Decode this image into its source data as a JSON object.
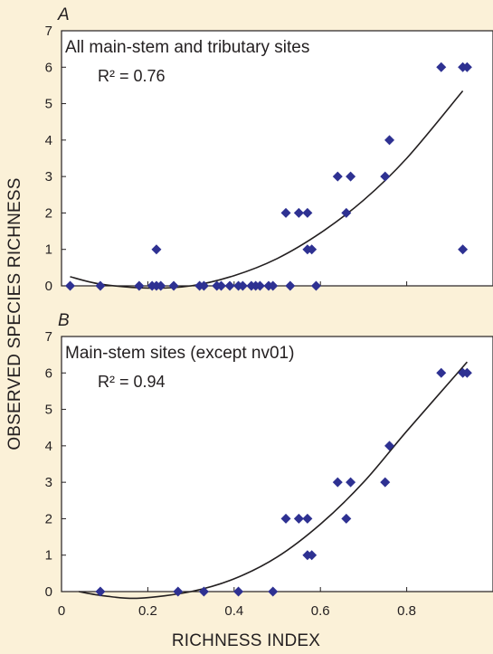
{
  "chart_data": {
    "type": "scatter",
    "xlabel": "RICHNESS INDEX",
    "ylabel": "OBSERVED SPECIES RICHNESS",
    "panels": [
      {
        "letter": "A",
        "title": "All main-stem and tributary sites",
        "r2": "R² = 0.76",
        "xlim": [
          0,
          1.0
        ],
        "ylim": [
          0,
          7
        ],
        "xticks": [
          "0",
          "0.2",
          "0.4",
          "0.6",
          "0.8"
        ],
        "xtick_values": [
          0,
          0.2,
          0.4,
          0.6,
          0.8
        ],
        "yticks": [
          "0",
          "1",
          "2",
          "3",
          "4",
          "5",
          "6",
          "7"
        ],
        "yticks_values": [
          0,
          1,
          2,
          3,
          4,
          5,
          6,
          7
        ],
        "marker_color": "#2e3192",
        "points": [
          [
            0.02,
            0
          ],
          [
            0.09,
            0
          ],
          [
            0.18,
            0
          ],
          [
            0.21,
            0
          ],
          [
            0.22,
            0
          ],
          [
            0.23,
            0
          ],
          [
            0.26,
            0
          ],
          [
            0.32,
            0
          ],
          [
            0.33,
            0
          ],
          [
            0.36,
            0
          ],
          [
            0.37,
            0
          ],
          [
            0.39,
            0
          ],
          [
            0.41,
            0
          ],
          [
            0.42,
            0
          ],
          [
            0.44,
            0
          ],
          [
            0.45,
            0
          ],
          [
            0.46,
            0
          ],
          [
            0.48,
            0
          ],
          [
            0.49,
            0
          ],
          [
            0.53,
            0
          ],
          [
            0.59,
            0
          ],
          [
            0.22,
            1
          ],
          [
            0.57,
            1
          ],
          [
            0.58,
            1
          ],
          [
            0.93,
            1
          ],
          [
            0.52,
            2
          ],
          [
            0.55,
            2
          ],
          [
            0.57,
            2
          ],
          [
            0.66,
            2
          ],
          [
            0.64,
            3
          ],
          [
            0.67,
            3
          ],
          [
            0.75,
            3
          ],
          [
            0.76,
            4
          ],
          [
            0.88,
            6
          ],
          [
            0.93,
            6
          ],
          [
            0.94,
            6
          ]
        ],
        "fit_curve": {
          "x_range": [
            0.02,
            0.93
          ],
          "points": [
            [
              0.02,
              0.25
            ],
            [
              0.09,
              0.05
            ],
            [
              0.2,
              -0.06
            ],
            [
              0.3,
              0.0
            ],
            [
              0.4,
              0.28
            ],
            [
              0.5,
              0.75
            ],
            [
              0.6,
              1.45
            ],
            [
              0.7,
              2.35
            ],
            [
              0.8,
              3.5
            ],
            [
              0.93,
              5.35
            ]
          ]
        }
      },
      {
        "letter": "B",
        "title": "Main-stem sites (except nv01)",
        "r2": "R² = 0.94",
        "xlim": [
          0,
          1.0
        ],
        "ylim": [
          0,
          7
        ],
        "xticks": [
          "0",
          "0.2",
          "0.4",
          "0.6",
          "0.8"
        ],
        "xtick_values": [
          0,
          0.2,
          0.4,
          0.6,
          0.8
        ],
        "yticks": [
          "0",
          "1",
          "2",
          "3",
          "4",
          "5",
          "6",
          "7"
        ],
        "yticks_values": [
          0,
          1,
          2,
          3,
          4,
          5,
          6,
          7
        ],
        "marker_color": "#2e3192",
        "points": [
          [
            0.09,
            0
          ],
          [
            0.27,
            0
          ],
          [
            0.33,
            0
          ],
          [
            0.41,
            0
          ],
          [
            0.49,
            0
          ],
          [
            0.57,
            1
          ],
          [
            0.58,
            1
          ],
          [
            0.52,
            2
          ],
          [
            0.55,
            2
          ],
          [
            0.57,
            2
          ],
          [
            0.66,
            2
          ],
          [
            0.64,
            3
          ],
          [
            0.67,
            3
          ],
          [
            0.75,
            3
          ],
          [
            0.76,
            4
          ],
          [
            0.88,
            6
          ],
          [
            0.93,
            6
          ],
          [
            0.94,
            6
          ]
        ],
        "fit_curve": {
          "x_range": [
            0.04,
            0.94
          ],
          "points": [
            [
              0.04,
              0.0
            ],
            [
              0.1,
              -0.12
            ],
            [
              0.18,
              -0.18
            ],
            [
              0.3,
              0.0
            ],
            [
              0.4,
              0.35
            ],
            [
              0.5,
              0.95
            ],
            [
              0.6,
              1.85
            ],
            [
              0.7,
              3.0
            ],
            [
              0.8,
              4.4
            ],
            [
              0.94,
              6.3
            ]
          ]
        }
      }
    ]
  }
}
